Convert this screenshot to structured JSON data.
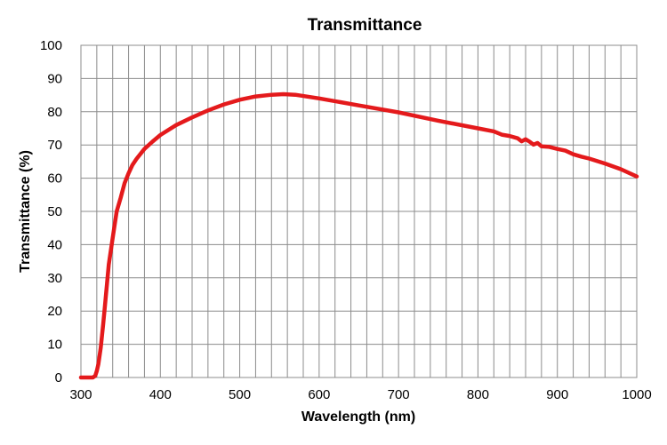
{
  "chart_data": {
    "type": "line",
    "title": "Transmittance",
    "xlabel": "Wavelength (nm)",
    "ylabel": "Transmittance (%)",
    "xlim": [
      300,
      1000
    ],
    "ylim": [
      0,
      100
    ],
    "x_ticks": [
      300,
      400,
      500,
      600,
      700,
      800,
      900,
      1000
    ],
    "y_ticks": [
      0,
      10,
      20,
      30,
      40,
      50,
      60,
      70,
      80,
      90,
      100
    ],
    "x_minor_step": 20,
    "grid": true,
    "legend": "none",
    "series": [
      {
        "color": "#e41a1c",
        "x": [
          300,
          315,
          318,
          320,
          322,
          325,
          328,
          330,
          335,
          340,
          345,
          350,
          355,
          360,
          365,
          370,
          380,
          390,
          400,
          420,
          440,
          460,
          480,
          500,
          520,
          540,
          555,
          570,
          600,
          650,
          700,
          750,
          800,
          820,
          830,
          840,
          850,
          855,
          860,
          865,
          870,
          875,
          880,
          890,
          900,
          910,
          920,
          930,
          940,
          960,
          980,
          1000
        ],
        "y": [
          0,
          0,
          0.5,
          2,
          4,
          9,
          16,
          21,
          34,
          42,
          50,
          54,
          58.5,
          61.5,
          64,
          65.8,
          68.8,
          71,
          73,
          76,
          78.3,
          80.4,
          82.2,
          83.6,
          84.6,
          85.1,
          85.3,
          85.1,
          84,
          81.9,
          79.8,
          77.3,
          75,
          74.1,
          73.1,
          72.7,
          72,
          71.1,
          71.7,
          71.0,
          70.1,
          70.6,
          69.6,
          69.4,
          68.8,
          68.3,
          67.2,
          66.5,
          65.9,
          64.4,
          62.7,
          60.5
        ]
      }
    ]
  }
}
